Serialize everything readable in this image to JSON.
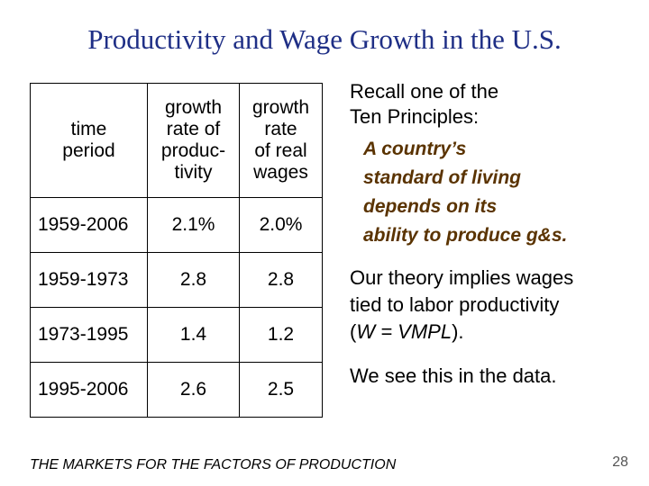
{
  "title": "Productivity and Wage Growth in the U.S.",
  "table": {
    "headers": {
      "period": [
        "time",
        "period"
      ],
      "productivity": [
        "growth",
        "rate of",
        "produc-",
        "tivity"
      ],
      "wages": [
        "growth",
        "rate",
        "of real",
        "wages"
      ]
    },
    "rows": [
      {
        "period": "1959-2006",
        "productivity": "2.1%",
        "wages": "2.0%"
      },
      {
        "period": "1959-1973",
        "productivity": "2.8",
        "wages": "2.8"
      },
      {
        "period": "1973-1995",
        "productivity": "1.4",
        "wages": "1.2"
      },
      {
        "period": "1995-2006",
        "productivity": "2.6",
        "wages": "2.5"
      }
    ]
  },
  "recall": [
    "Recall one of the",
    "Ten Principles:"
  ],
  "principle": [
    "A country’s",
    "standard of living",
    "depends on its",
    "ability to produce g&s."
  ],
  "implies": {
    "line1": "Our theory implies wages",
    "line2": "tied to labor productivity",
    "open": "(",
    "formula": "W = VMPL",
    "close": ")."
  },
  "conclusion": "We see this in the data.",
  "footer": "THE MARKETS FOR THE FACTORS OF PRODUCTION",
  "page_number": "28",
  "colors": {
    "title": "#1f2f86",
    "principle": "#5a3300"
  }
}
